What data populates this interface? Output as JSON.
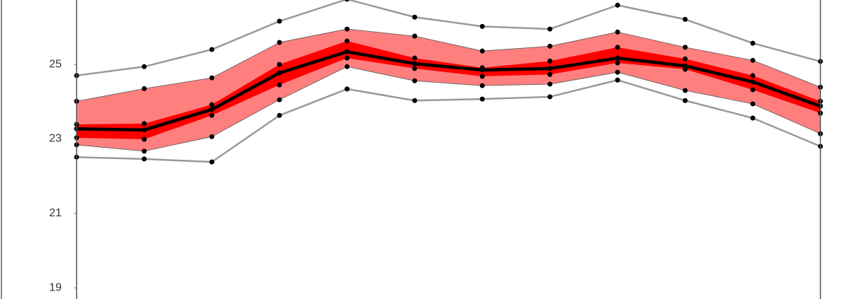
{
  "chart_data": {
    "type": "band",
    "categories": [
      null,
      null,
      null,
      null,
      null,
      null,
      null,
      null,
      null,
      null,
      null,
      null
    ],
    "ylim": [
      18.7,
      26.73
    ],
    "yticks": [
      19,
      21,
      23,
      25
    ],
    "bands": [
      {
        "color": "#ff7f7f",
        "upper": [
          24.01,
          24.35,
          24.64,
          25.59,
          25.95,
          25.76,
          25.36,
          25.49,
          25.87,
          25.46,
          25.11,
          24.39
        ],
        "lower": [
          22.84,
          22.67,
          23.06,
          24.05,
          24.94,
          24.56,
          24.43,
          24.47,
          24.79,
          24.3,
          23.94,
          23.14
        ]
      },
      {
        "color": "#ff0000",
        "upper": [
          23.39,
          23.41,
          23.92,
          25.0,
          25.63,
          25.17,
          24.91,
          25.09,
          25.46,
          25.15,
          24.7,
          24.01
        ],
        "lower": [
          23.03,
          22.99,
          23.63,
          24.45,
          25.17,
          24.89,
          24.68,
          24.73,
          25.04,
          24.87,
          24.32,
          23.69
        ]
      }
    ],
    "series": [
      {
        "color": "#999999",
        "width": 2.5,
        "values": [
          24.7,
          24.94,
          25.4,
          26.16,
          26.75,
          26.27,
          26.02,
          25.95,
          26.59,
          26.21,
          25.57,
          25.08
        ]
      },
      {
        "color": "#999999",
        "width": 2.5,
        "values": [
          22.51,
          22.46,
          22.38,
          23.63,
          24.34,
          24.03,
          24.07,
          24.13,
          24.58,
          24.03,
          23.56,
          22.8
        ]
      },
      {
        "color": "#000000",
        "width": 4.5,
        "values": [
          23.27,
          23.24,
          23.79,
          24.77,
          25.34,
          25.02,
          24.85,
          24.89,
          25.17,
          24.96,
          24.53,
          23.88
        ]
      }
    ]
  }
}
